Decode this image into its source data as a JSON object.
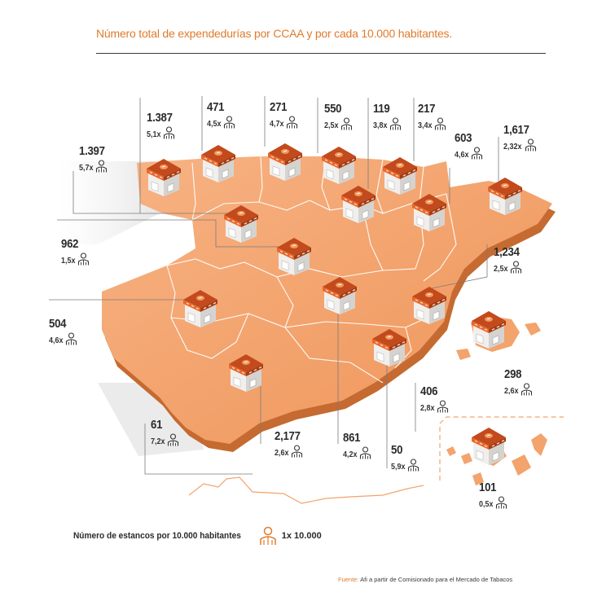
{
  "title": "Número total de expendedurías por CCAA y por cada 10.000 habitantes.",
  "legend": {
    "label": "Número de estancos por 10.000 habitantes",
    "icon": "person-icon",
    "scale": "1x 10.000"
  },
  "source": {
    "label": "Fuente:",
    "text": "Afi a partir de Comisionado para el Mercado de Tabacos"
  },
  "colors": {
    "accent": "#e07b2c",
    "land": "#f3a36c",
    "shadow": "#c9692f",
    "text": "#2b2b2b"
  },
  "regions": [
    {
      "id": "galicia",
      "count": "1.397",
      "ratio": "5,7x"
    },
    {
      "id": "asturias",
      "count": "1.387",
      "ratio": "5,1x"
    },
    {
      "id": "cantabria",
      "count": "471",
      "ratio": "4,5x"
    },
    {
      "id": "pais-vasco",
      "count": "271",
      "ratio": "4,7x"
    },
    {
      "id": "navarra",
      "count": "550",
      "ratio": "2,5x"
    },
    {
      "id": "la-rioja",
      "count": "119",
      "ratio": "3,8x"
    },
    {
      "id": "aragon",
      "count": "217",
      "ratio": "3,4x"
    },
    {
      "id": "cataluna",
      "count": "603",
      "ratio": "4,6x"
    },
    {
      "id": "cataluna-total",
      "count": "1,617",
      "ratio": "2,32x"
    },
    {
      "id": "castilla-leon",
      "count": "962",
      "ratio": "1,5x"
    },
    {
      "id": "comunidad-valenciana",
      "count": "1,234",
      "ratio": "2,5x"
    },
    {
      "id": "extremadura",
      "count": "504",
      "ratio": "4,6x"
    },
    {
      "id": "baleares",
      "count": "298",
      "ratio": "2,6x"
    },
    {
      "id": "murcia",
      "count": "406",
      "ratio": "2,8x"
    },
    {
      "id": "ceuta",
      "count": "61",
      "ratio": "7,2x"
    },
    {
      "id": "andalucia",
      "count": "2,177",
      "ratio": "2,6x"
    },
    {
      "id": "castilla-la-mancha",
      "count": "861",
      "ratio": "4,2x"
    },
    {
      "id": "melilla",
      "count": "50",
      "ratio": "5,9x"
    },
    {
      "id": "canarias",
      "count": "101",
      "ratio": "0,5x"
    }
  ]
}
